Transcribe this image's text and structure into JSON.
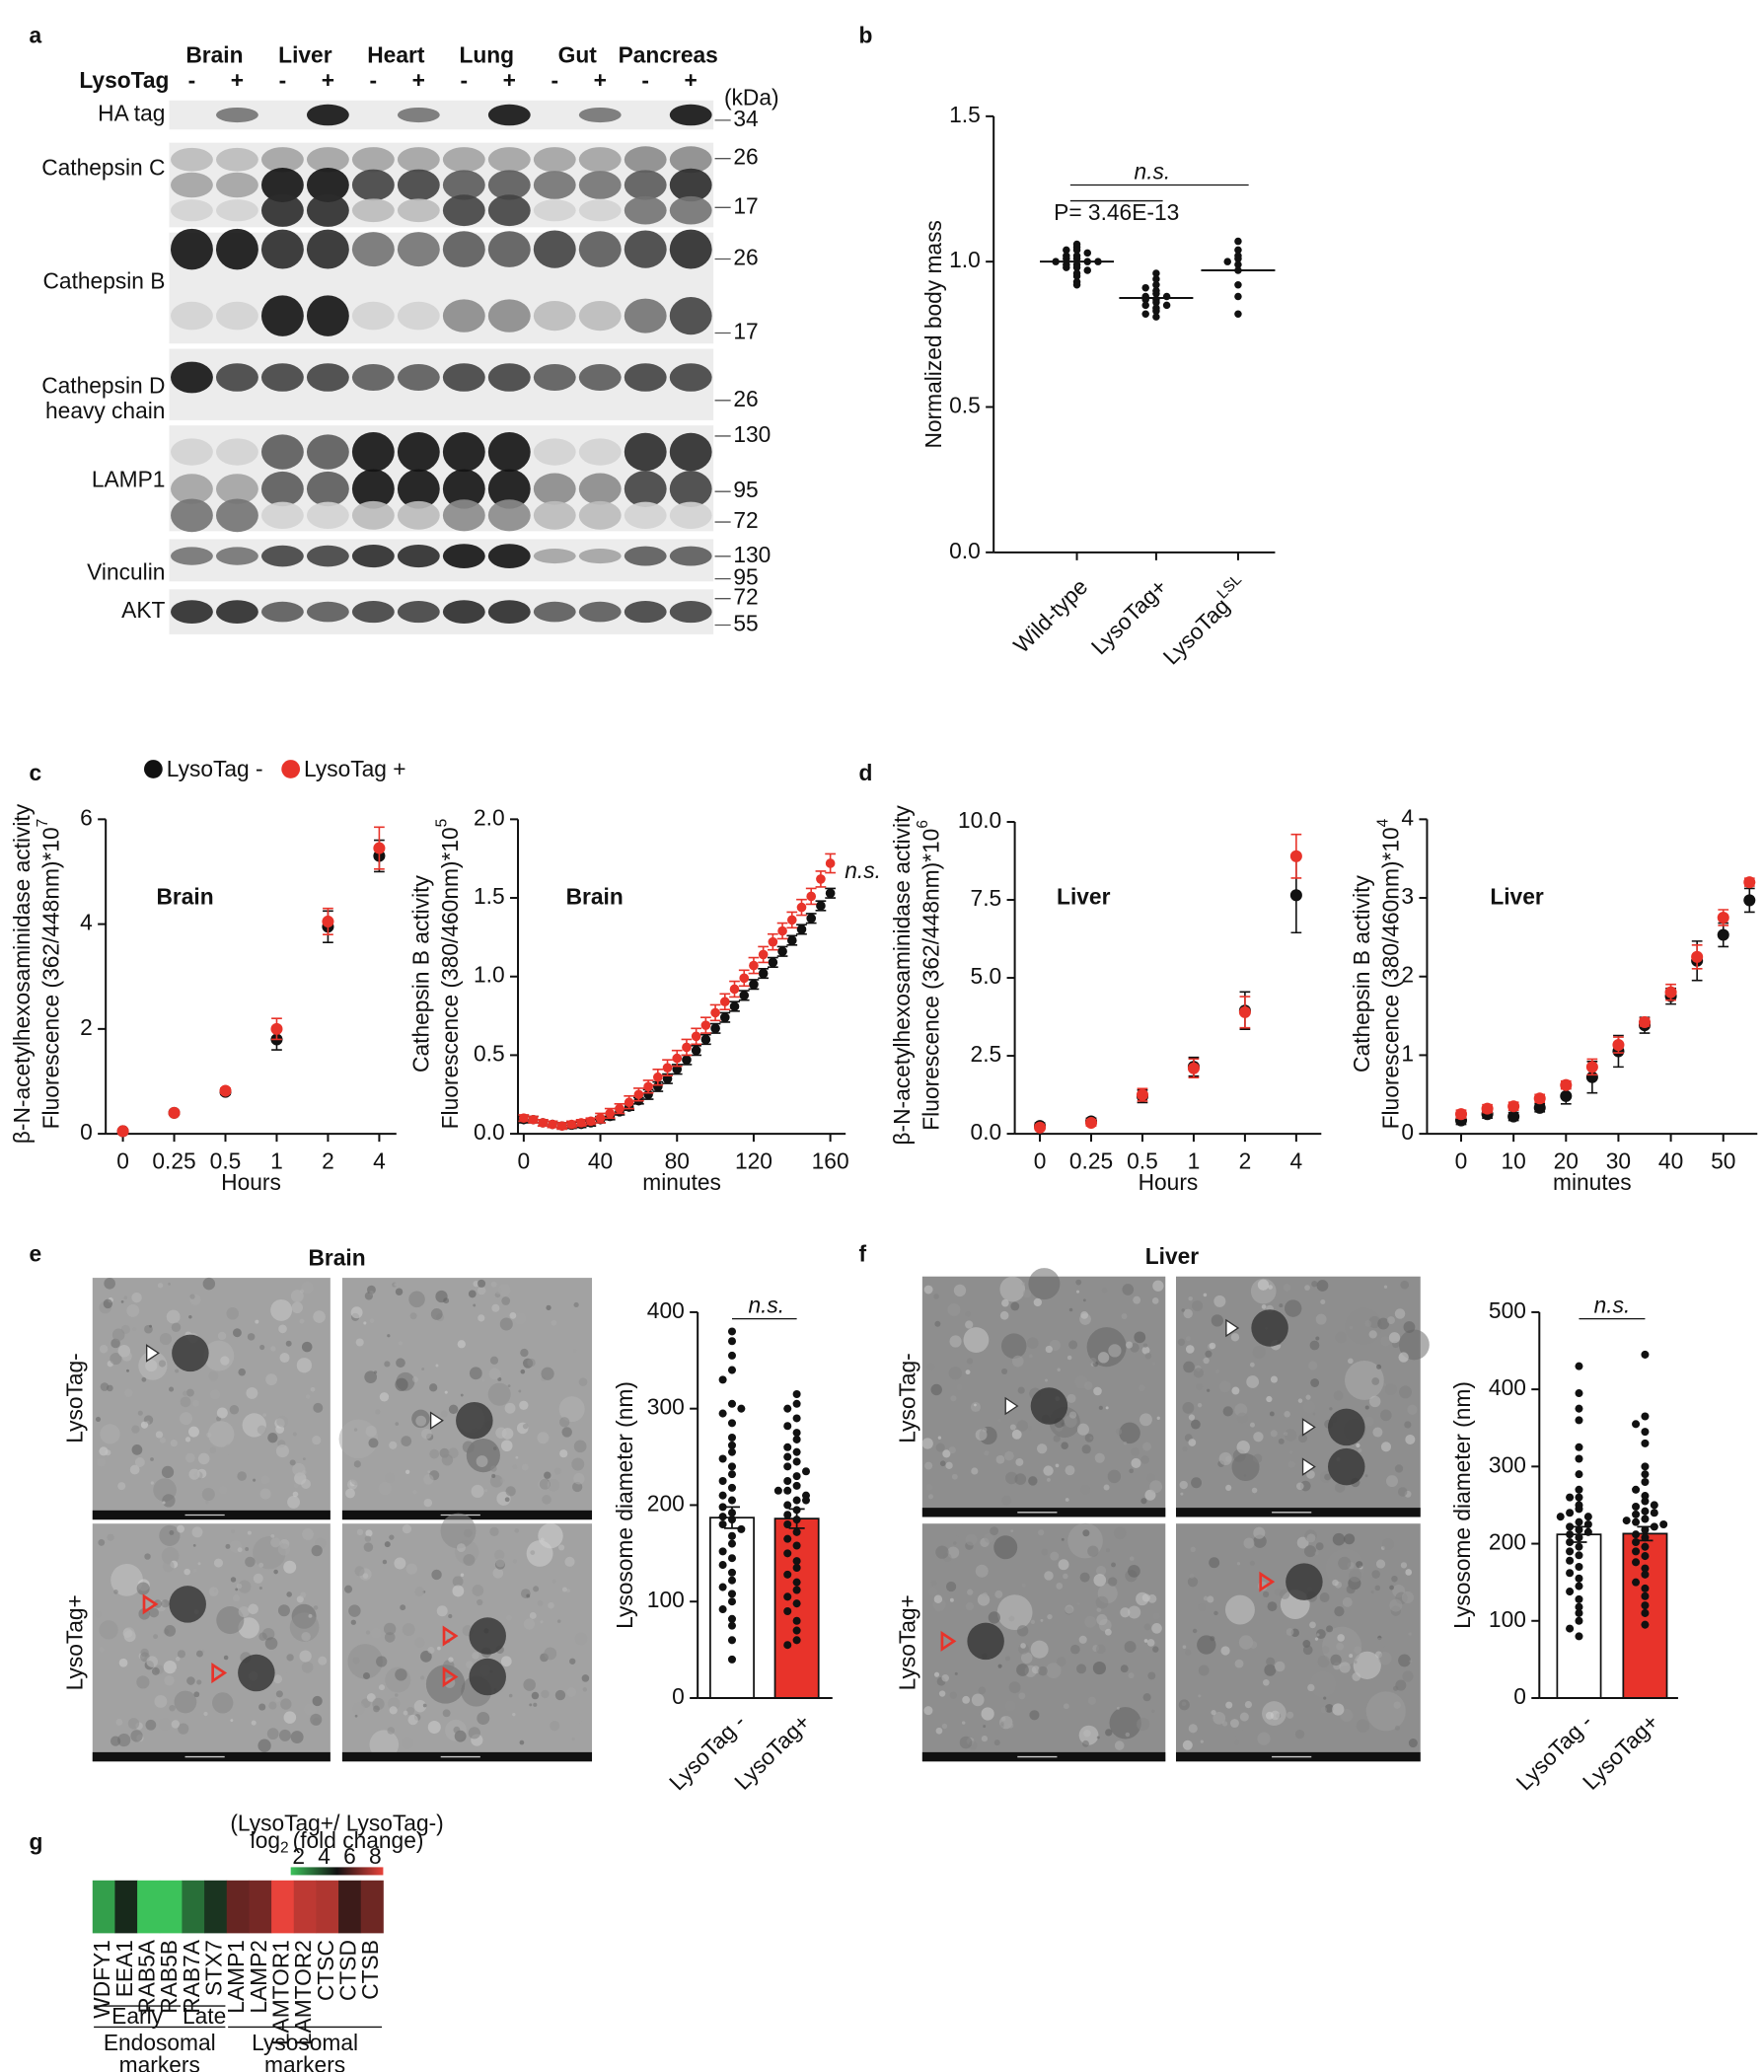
{
  "panel_labels": [
    "a",
    "b",
    "c",
    "d",
    "e",
    "f",
    "g"
  ],
  "blot": {
    "lysotag_label": "LysoTag",
    "tissues": [
      "Brain",
      "Liver",
      "Heart",
      "Lung",
      "Gut",
      "Pancreas"
    ],
    "lane_signs": [
      "-",
      "+"
    ],
    "kda_label": "(kDa)",
    "rows": [
      {
        "label": [
          "HA tag"
        ],
        "markers": [
          34
        ]
      },
      {
        "label": [
          "Cathepsin C"
        ],
        "markers": [
          26,
          17
        ]
      },
      {
        "label": [
          "Cathepsin B"
        ],
        "markers": [
          26,
          17
        ]
      },
      {
        "label": [
          "Cathepsin D",
          "heavy chain"
        ],
        "markers": [
          26
        ]
      },
      {
        "label": [
          "LAMP1"
        ],
        "markers": [
          130,
          95,
          72
        ]
      },
      {
        "label": [
          "Vinculin"
        ],
        "markers": [
          130,
          95
        ]
      },
      {
        "label": [
          "AKT"
        ],
        "markers": [
          72,
          55
        ]
      }
    ]
  },
  "em": [
    {
      "title": "Brain",
      "row_labels": [
        "LysoTag-",
        "LysoTag+"
      ]
    },
    {
      "title": "Liver",
      "row_labels": [
        "LysoTag-",
        "LysoTag+"
      ]
    }
  ],
  "chart_data": [
    {
      "type": "dot",
      "ylabel": "Normalized body mass",
      "categories": [
        "Wild-type",
        "LysoTag+",
        "LysoTag"
      ],
      "category_superscripts": [
        null,
        null,
        "LSL"
      ],
      "values": [
        [
          1.06,
          1.05,
          1.04,
          1.04,
          1.03,
          1.02,
          1.02,
          1.01,
          1.01,
          1.0,
          1.0,
          1.0,
          0.99,
          0.99,
          0.98,
          0.98,
          0.97,
          0.96,
          0.95,
          0.93,
          0.92
        ],
        [
          0.96,
          0.94,
          0.92,
          0.91,
          0.9,
          0.89,
          0.88,
          0.88,
          0.87,
          0.87,
          0.86,
          0.85,
          0.85,
          0.84,
          0.83,
          0.82,
          0.81
        ],
        [
          1.07,
          1.04,
          1.02,
          1.01,
          1.0,
          0.99,
          0.97,
          0.92,
          0.88,
          0.82
        ]
      ],
      "means": [
        1.0,
        0.875,
        0.97
      ],
      "ylim": [
        0,
        1.5
      ],
      "yticks": [
        {
          "value": 0,
          "label": "0.0"
        },
        {
          "value": 0.5,
          "label": "0.5"
        },
        {
          "value": 1,
          "label": "1.0"
        },
        {
          "value": 1.5,
          "label": "1.5"
        }
      ],
      "annotations": [
        "n.s.",
        "P= 3.46E-13"
      ]
    },
    {
      "type": "errorpoint",
      "title": "Brain",
      "xlabel": "Hours",
      "ylabel": {
        "lines": [
          "β-N-acetylhexosaminidase activity",
          "Fluorescence (362/448nm)*10"
        ],
        "sup": "7"
      },
      "categories": [
        "0",
        "0.25",
        "0.5",
        "1",
        "2",
        "4"
      ],
      "series": [
        {
          "name": "LysoTag -",
          "color": "#111111",
          "values": [
            0.05,
            0.4,
            0.8,
            1.8,
            3.95,
            5.3
          ],
          "errors": [
            0.02,
            0.03,
            0.05,
            0.2,
            0.3,
            0.3
          ]
        },
        {
          "name": "LysoTag +",
          "color": "#e8332a",
          "values": [
            0.05,
            0.4,
            0.82,
            2.0,
            4.05,
            5.45
          ],
          "errors": [
            0.02,
            0.03,
            0.05,
            0.2,
            0.25,
            0.4
          ]
        }
      ],
      "ylim": [
        0,
        6
      ],
      "yticks": [
        0,
        2,
        4,
        6
      ]
    },
    {
      "type": "errorpoint",
      "title": "Brain",
      "xlabel": "minutes",
      "ylabel": {
        "lines": [
          "Cathepsin B activity",
          "Fluorescence (380/460nm)*10"
        ],
        "sup": "5"
      },
      "annotation": "n.s.",
      "x": [
        0,
        5,
        10,
        15,
        20,
        25,
        30,
        35,
        40,
        45,
        50,
        55,
        60,
        65,
        70,
        75,
        80,
        85,
        90,
        95,
        100,
        105,
        110,
        115,
        120,
        125,
        130,
        135,
        140,
        145,
        150,
        155,
        160
      ],
      "series": [
        {
          "color": "#111111",
          "values": [
            0.09,
            0.09,
            0.07,
            0.06,
            0.05,
            0.055,
            0.06,
            0.07,
            0.09,
            0.11,
            0.14,
            0.17,
            0.21,
            0.25,
            0.3,
            0.35,
            0.41,
            0.47,
            0.53,
            0.6,
            0.67,
            0.74,
            0.81,
            0.88,
            0.95,
            1.02,
            1.09,
            1.16,
            1.23,
            1.3,
            1.37,
            1.45,
            1.53
          ],
          "errors": [
            0.02,
            0.02,
            0.02,
            0.02,
            0.02,
            0.02,
            0.02,
            0.02,
            0.02,
            0.02,
            0.02,
            0.02,
            0.02,
            0.03,
            0.03,
            0.03,
            0.03,
            0.03,
            0.03,
            0.03,
            0.03,
            0.03,
            0.03,
            0.03,
            0.03,
            0.03,
            0.03,
            0.03,
            0.03,
            0.03,
            0.03,
            0.03,
            0.03
          ]
        },
        {
          "color": "#e8332a",
          "values": [
            0.1,
            0.09,
            0.07,
            0.06,
            0.05,
            0.06,
            0.07,
            0.08,
            0.1,
            0.13,
            0.16,
            0.2,
            0.25,
            0.3,
            0.36,
            0.42,
            0.48,
            0.55,
            0.62,
            0.69,
            0.77,
            0.84,
            0.92,
            0.99,
            1.07,
            1.14,
            1.22,
            1.29,
            1.36,
            1.44,
            1.51,
            1.62,
            1.72
          ],
          "errors": [
            0.02,
            0.02,
            0.02,
            0.02,
            0.02,
            0.02,
            0.02,
            0.02,
            0.03,
            0.03,
            0.03,
            0.04,
            0.04,
            0.04,
            0.05,
            0.05,
            0.05,
            0.05,
            0.05,
            0.05,
            0.05,
            0.05,
            0.05,
            0.05,
            0.05,
            0.05,
            0.05,
            0.05,
            0.05,
            0.05,
            0.05,
            0.05,
            0.06
          ]
        }
      ],
      "xlim": [
        -3,
        168
      ],
      "xticks": [
        0,
        40,
        80,
        120,
        160
      ],
      "ylim": [
        0,
        2
      ],
      "yticks": [
        {
          "value": 0,
          "label": "0.0"
        },
        {
          "value": 0.5,
          "label": "0.5"
        },
        {
          "value": 1,
          "label": "1.0"
        },
        {
          "value": 1.5,
          "label": "1.5"
        },
        {
          "value": 2,
          "label": "2.0"
        }
      ]
    },
    {
      "type": "errorpoint",
      "title": "Liver",
      "xlabel": "Hours",
      "ylabel": {
        "lines": [
          "β-N-acetylhexosaminidase activity",
          "Fluorescence (362/448nm)*10"
        ],
        "sup": "6"
      },
      "categories": [
        "0",
        "0.25",
        "0.5",
        "1",
        "2",
        "4"
      ],
      "series": [
        {
          "color": "#111111",
          "values": [
            0.25,
            0.4,
            1.2,
            2.15,
            3.95,
            7.65
          ],
          "errors": [
            0.1,
            0.1,
            0.2,
            0.3,
            0.6,
            1.2
          ]
        },
        {
          "color": "#e8332a",
          "values": [
            0.2,
            0.35,
            1.25,
            2.1,
            3.9,
            8.9
          ],
          "errors": [
            0.05,
            0.1,
            0.2,
            0.3,
            0.5,
            0.7
          ]
        }
      ],
      "ylim": [
        0,
        10
      ],
      "yticks": [
        {
          "value": 0,
          "label": "0.0"
        },
        {
          "value": 2.5,
          "label": "2.5"
        },
        {
          "value": 5,
          "label": "5.0"
        },
        {
          "value": 7.5,
          "label": "7.5"
        },
        {
          "value": 10,
          "label": "10.0"
        }
      ]
    },
    {
      "type": "errorpoint",
      "title": "Liver",
      "xlabel": "minutes",
      "ylabel": {
        "lines": [
          "Cathepsin B activity",
          "Fluorescence (380/460nm)*10"
        ],
        "sup": "4"
      },
      "x": [
        0,
        5,
        10,
        15,
        20,
        25,
        30,
        35,
        40,
        45,
        50,
        55
      ],
      "series": [
        {
          "color": "#111111",
          "values": [
            0.17,
            0.25,
            0.22,
            0.33,
            0.48,
            0.72,
            1.05,
            1.38,
            1.75,
            2.2,
            2.53,
            2.97
          ],
          "errors": [
            0.05,
            0.05,
            0.05,
            0.05,
            0.1,
            0.2,
            0.2,
            0.1,
            0.1,
            0.25,
            0.15,
            0.15
          ]
        },
        {
          "color": "#e8332a",
          "values": [
            0.25,
            0.32,
            0.35,
            0.45,
            0.62,
            0.85,
            1.13,
            1.42,
            1.8,
            2.25,
            2.75,
            3.2
          ],
          "errors": [
            0.05,
            0.05,
            0.05,
            0.05,
            0.05,
            0.1,
            0.1,
            0.05,
            0.1,
            0.15,
            0.1,
            0.05
          ]
        }
      ],
      "xlim": [
        -6.5,
        56.5
      ],
      "xticks": [
        0,
        10,
        20,
        30,
        40,
        50
      ],
      "ylim": [
        0,
        4
      ],
      "yticks": [
        0,
        1,
        2,
        3,
        4
      ]
    },
    {
      "type": "bar",
      "ylabel": "Lysosome diameter (nm)",
      "categories": [
        "LysoTag -",
        "LysoTag+"
      ],
      "colors": [
        "#ffffff",
        "#e8332a"
      ],
      "values": [
        187,
        186
      ],
      "errors": [
        11,
        10
      ],
      "points": [
        [
          380,
          370,
          355,
          340,
          305,
          295,
          285,
          270,
          262,
          255,
          248,
          240,
          232,
          225,
          218,
          210,
          205,
          198,
          192,
          188,
          185,
          180,
          175,
          168,
          160,
          152,
          145,
          138,
          130,
          122,
          115,
          108,
          100,
          92,
          82,
          75,
          60,
          40,
          330,
          300
        ],
        [
          315,
          305,
          300,
          290,
          282,
          275,
          268,
          260,
          255,
          250,
          245,
          240,
          235,
          230,
          225,
          220,
          215,
          210,
          205,
          200,
          195,
          190,
          185,
          180,
          172,
          165,
          158,
          150,
          142,
          135,
          128,
          120,
          112,
          105,
          98,
          90,
          80,
          70,
          60,
          55,
          205,
          215
        ]
      ],
      "ylim": [
        0,
        400
      ],
      "yticks": [
        0,
        100,
        200,
        300,
        400
      ],
      "annotation": "n.s."
    },
    {
      "type": "bar",
      "ylabel": "Lysosome diameter (nm)",
      "categories": [
        "LysoTag -",
        "LysoTag+"
      ],
      "colors": [
        "#ffffff",
        "#e8332a"
      ],
      "values": [
        212,
        213
      ],
      "errors": [
        10,
        9
      ],
      "points": [
        [
          430,
          395,
          375,
          360,
          325,
          310,
          290,
          270,
          260,
          250,
          245,
          240,
          235,
          228,
          222,
          218,
          212,
          208,
          202,
          196,
          190,
          185,
          178,
          170,
          162,
          155,
          145,
          138,
          128,
          118,
          110,
          100,
          90,
          80,
          260,
          235,
          225,
          215
        ],
        [
          445,
          365,
          355,
          345,
          330,
          300,
          290,
          280,
          270,
          262,
          255,
          248,
          242,
          238,
          232,
          228,
          222,
          218,
          212,
          208,
          202,
          196,
          190,
          184,
          176,
          168,
          160,
          150,
          142,
          132,
          120,
          110,
          95,
          250,
          240,
          230,
          225
        ]
      ],
      "ylim": [
        0,
        500
      ],
      "yticks": [
        0,
        100,
        200,
        300,
        400,
        500
      ],
      "annotation": "n.s."
    },
    {
      "type": "heatmap",
      "categories": [
        "WDFY1",
        "EEA1",
        "RAB5A",
        "RAB5B",
        "RAB7A",
        "STX7",
        "LAMP1",
        "LAMP2",
        "LAMTOR1",
        "LAMTOR2",
        "CTSC",
        "CTSD",
        "CTSB"
      ],
      "values": [
        2.6,
        4.6,
        1.8,
        1.8,
        3.4,
        4.4,
        6.2,
        6.4,
        8.0,
        7.4,
        7.2,
        5.6,
        6.3
      ],
      "clim": [
        2,
        8
      ],
      "colormap": [
        "#3cc25a",
        "#111111",
        "#e8433b"
      ],
      "colorbar_title": {
        "line1": "(LysoTag+/ LysoTag-)",
        "line2": [
          "log",
          "2",
          "(fold change)"
        ]
      },
      "colorbar_ticks": [
        2,
        4,
        6,
        8
      ],
      "subgroups": [
        "Early",
        "Late"
      ],
      "groups": [
        [
          "Endosomal",
          "markers"
        ],
        [
          "Lysosomal",
          "markers"
        ]
      ]
    }
  ]
}
